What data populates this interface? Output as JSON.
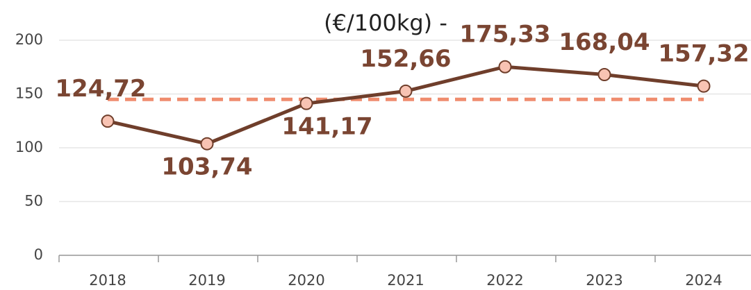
{
  "chart_data": {
    "type": "line",
    "title": "(€/100kg) -",
    "categories": [
      "2018",
      "2019",
      "2020",
      "2021",
      "2022",
      "2023",
      "2024"
    ],
    "series": [
      {
        "color": "#6f3e2b",
        "marker_color": "#f8c3b3",
        "values": [
          124.72,
          103.74,
          141.17,
          152.66,
          175.33,
          168.04,
          157.32
        ],
        "value_labels": [
          "124,72",
          "103,74",
          "141,17",
          "152,66",
          "175,33",
          "168,04",
          "157,32"
        ]
      }
    ],
    "reference_line": {
      "value": 145,
      "color": "#ef8c6e",
      "style": "dashed"
    },
    "ylim": [
      0,
      200
    ],
    "yticks": [
      0,
      50,
      100,
      150,
      200
    ],
    "grid": true
  }
}
